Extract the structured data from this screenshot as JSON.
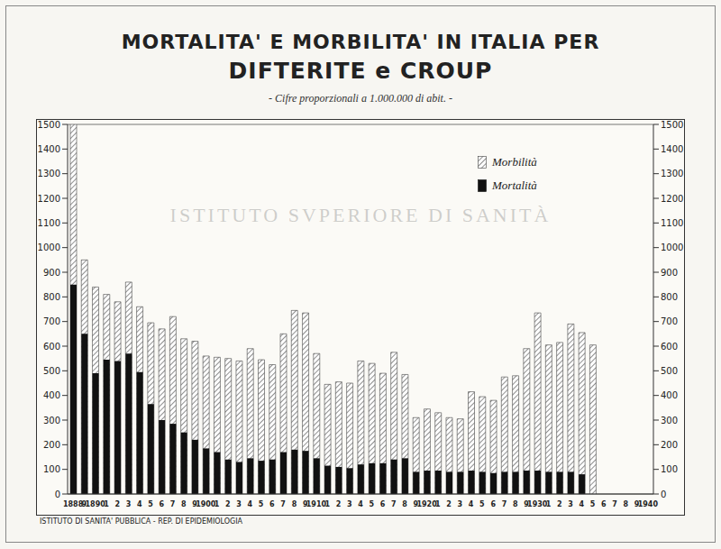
{
  "chart_data": {
    "type": "bar",
    "title": [
      "MORTALITA' E MORBILITA' IN ITALIA PER",
      "DIFTERITE e CROUP"
    ],
    "subtitle": "- Cifre proporzionali a 1.000.000 di abit. -",
    "source": "ISTITUTO DI SANITA' PUBBLICA - REP. DI EPIDEMIOLOGIA",
    "watermark": "ISTITUTO SVPERIORE DI SANITÀ",
    "categories": [
      "1888",
      "9",
      "1890",
      "1",
      "2",
      "3",
      "4",
      "5",
      "6",
      "7",
      "8",
      "9",
      "1900",
      "1",
      "2",
      "3",
      "4",
      "5",
      "6",
      "7",
      "8",
      "9",
      "1910",
      "1",
      "2",
      "3",
      "4",
      "5",
      "6",
      "7",
      "8",
      "9",
      "1920",
      "1",
      "2",
      "3",
      "4",
      "5",
      "6",
      "7",
      "8",
      "9",
      "1930",
      "1",
      "2",
      "3",
      "4",
      "5",
      "6",
      "7",
      "8",
      "9",
      "1940"
    ],
    "series": [
      {
        "name": "Morbilità",
        "color": "#444444",
        "values": [
          1500,
          950,
          840,
          810,
          780,
          860,
          760,
          695,
          670,
          720,
          630,
          620,
          560,
          555,
          550,
          540,
          590,
          545,
          525,
          650,
          745,
          735,
          570,
          445,
          455,
          450,
          540,
          530,
          490,
          575,
          485,
          310,
          345,
          330,
          310,
          305,
          415,
          395,
          380,
          475,
          480,
          590,
          735,
          605,
          615,
          690,
          655,
          605,
          null,
          null,
          null,
          null,
          null
        ]
      },
      {
        "name": "Mortalità",
        "color": "#111111",
        "values": [
          850,
          650,
          490,
          545,
          540,
          570,
          495,
          365,
          300,
          285,
          250,
          220,
          185,
          170,
          140,
          130,
          145,
          135,
          140,
          170,
          180,
          175,
          145,
          115,
          110,
          105,
          120,
          125,
          125,
          140,
          145,
          90,
          95,
          95,
          90,
          90,
          95,
          90,
          85,
          90,
          90,
          95,
          95,
          90,
          90,
          90,
          80,
          null,
          null,
          null,
          null,
          null,
          null
        ]
      }
    ],
    "ylim": [
      0,
      1500
    ],
    "yticks": [
      0,
      100,
      200,
      300,
      400,
      500,
      600,
      700,
      800,
      900,
      1000,
      1100,
      1200,
      1300,
      1400,
      1500
    ],
    "grid": true,
    "legend": "upper right"
  }
}
